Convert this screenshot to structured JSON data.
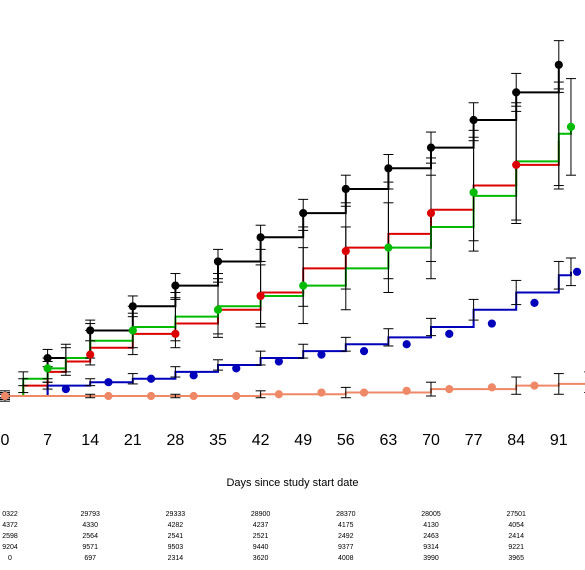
{
  "chart_data": {
    "type": "line",
    "title": "",
    "xlabel": "Days since study start date",
    "ylabel": "",
    "x_ticks": [
      0,
      7,
      14,
      21,
      28,
      35,
      42,
      49,
      56,
      63,
      70,
      77,
      84,
      91
    ],
    "xlim": [
      0,
      96
    ],
    "ylim": [
      0,
      100
    ],
    "grid": false,
    "legend": "none",
    "series": [
      {
        "color": "#000000",
        "x": [
          0,
          7,
          14,
          21,
          28,
          35,
          42,
          49,
          56,
          63,
          70,
          77,
          84,
          91
        ],
        "y": [
          0,
          11,
          19,
          26,
          32,
          39,
          46,
          53,
          60,
          66,
          72,
          80,
          88,
          96
        ],
        "err": [
          1.5,
          2.5,
          3,
          3,
          3.5,
          3.5,
          3.5,
          4,
          4,
          4,
          4.5,
          5,
          5.5,
          7
        ],
        "markers_x": [
          0,
          7,
          14,
          21,
          28,
          35,
          42,
          49,
          56,
          63,
          70,
          77,
          84,
          91
        ],
        "markers_y": [
          0,
          11,
          19,
          26,
          32,
          39,
          46,
          53,
          60,
          66,
          72,
          80,
          88,
          96
        ]
      },
      {
        "color": "#dd0000",
        "x": [
          0,
          3,
          7,
          10,
          14,
          21,
          28,
          35,
          42,
          49,
          56,
          63,
          70,
          77,
          84,
          91
        ],
        "y": [
          0,
          3,
          7,
          10,
          14,
          18,
          21,
          25,
          30,
          37,
          43,
          47,
          54,
          61,
          67,
          74
        ],
        "err": [
          1,
          2,
          3,
          4,
          5,
          6,
          7,
          8,
          9,
          11,
          12,
          13,
          15,
          16,
          17,
          14
        ],
        "markers_x": [
          0,
          14,
          28,
          42,
          56,
          70,
          84
        ],
        "markers_y": [
          0,
          12,
          18,
          29,
          42,
          53,
          67
        ]
      },
      {
        "color": "#00bb00",
        "x": [
          0,
          3,
          7,
          10,
          14,
          21,
          28,
          35,
          42,
          49,
          56,
          63,
          70,
          77,
          84,
          91,
          93
        ],
        "y": [
          0,
          5,
          8,
          11,
          16,
          20,
          23,
          26,
          29,
          32,
          37,
          43,
          49,
          58,
          68,
          76,
          78
        ],
        "err": [
          1,
          2,
          3,
          4,
          5,
          6,
          7,
          8,
          9,
          11,
          12,
          13,
          15,
          16,
          17,
          15,
          14
        ],
        "markers_x": [
          0,
          7,
          21,
          35,
          49,
          63,
          77,
          93
        ],
        "markers_y": [
          0,
          8,
          19,
          25,
          32,
          43,
          59,
          78
        ]
      },
      {
        "color": "#0000bb",
        "x": [
          0,
          7,
          14,
          21,
          28,
          35,
          42,
          49,
          56,
          63,
          70,
          77,
          84,
          91,
          93
        ],
        "y": [
          0,
          3,
          4,
          5,
          7,
          9,
          11,
          13,
          15,
          17,
          20,
          25,
          30,
          35,
          36
        ],
        "err": [
          0.5,
          1,
          1,
          1.5,
          1.5,
          1.5,
          2,
          2,
          2,
          2.5,
          2.5,
          3,
          3.5,
          4,
          4
        ],
        "markers_x": [
          0,
          10,
          17,
          24,
          31,
          38,
          45,
          52,
          59,
          66,
          73,
          80,
          87,
          94
        ],
        "markers_y": [
          0,
          2,
          4,
          5,
          6,
          8,
          10,
          12,
          13,
          15,
          18,
          21,
          27,
          36
        ]
      },
      {
        "color": "#ee8866",
        "x": [
          0,
          14,
          28,
          42,
          56,
          70,
          84,
          91,
          96
        ],
        "y": [
          0,
          0,
          0,
          0.5,
          1,
          2,
          3,
          3.5,
          4
        ],
        "err": [
          0.5,
          0.5,
          0.5,
          1,
          1.5,
          2,
          2.5,
          3,
          3
        ],
        "markers_x": [
          0,
          17,
          24,
          31,
          38,
          45,
          52,
          59,
          66,
          73,
          80,
          87,
          96
        ],
        "markers_y": [
          0,
          0,
          0,
          0,
          0,
          0.5,
          1,
          1,
          1.5,
          2,
          2.5,
          3,
          4
        ]
      }
    ],
    "risk_table": {
      "columns_x": [
        7,
        14,
        28,
        42,
        56,
        70,
        84
      ],
      "rows": [
        [
          "0322",
          "29793",
          "29333",
          "28900",
          "28370",
          "28005",
          "27501"
        ],
        [
          "4372",
          "4330",
          "4282",
          "4237",
          "4175",
          "4130",
          "4054"
        ],
        [
          "2598",
          "2564",
          "2541",
          "2521",
          "2492",
          "2463",
          "2414"
        ],
        [
          "9204",
          "9571",
          "9503",
          "9440",
          "9377",
          "9314",
          "9221"
        ],
        [
          "0",
          "697",
          "2314",
          "3620",
          "4008",
          "3990",
          "3965"
        ]
      ]
    }
  }
}
